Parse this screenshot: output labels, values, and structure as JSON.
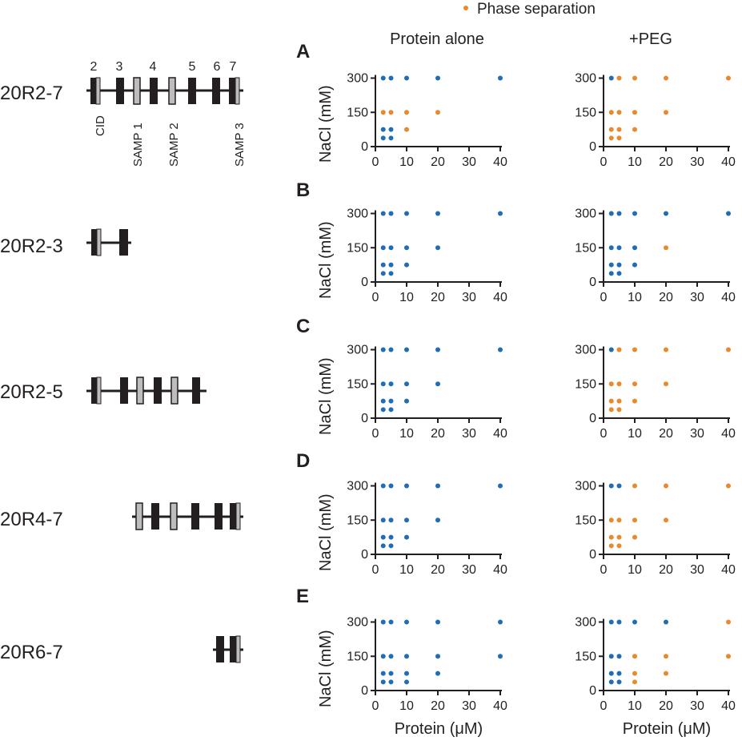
{
  "legend": {
    "label": "Phase separation",
    "color": "#e8892e"
  },
  "colors": {
    "no_phase": "#1f6db5",
    "phase": "#e8892e",
    "line": "#231f20",
    "light_box": "#bdbdbd"
  },
  "column_titles": [
    "Protein alone",
    "+PEG"
  ],
  "x_axis_label": "Protein (μM)",
  "y_axis_label": "NaCl (mM)",
  "construct_row1": {
    "name": "20R2-7",
    "numbers": [
      "2",
      "3",
      "4",
      "5",
      "6",
      "7"
    ],
    "sub_labels": [
      "CID",
      "SAMP 1",
      "SAMP 2",
      "SAMP 3"
    ]
  },
  "constructs": [
    "20R2-7",
    "20R2-3",
    "20R2-5",
    "20R4-7",
    "20R6-7"
  ],
  "chart_data": [
    {
      "panel": "A",
      "construct": "20R2-7",
      "condition": "Protein alone",
      "type": "scatter",
      "xlabel": "",
      "ylabel": "NaCl (mM)",
      "x_ticks": [
        0,
        10,
        20,
        30,
        40
      ],
      "y_ticks": [
        0,
        150,
        300
      ],
      "xlim": [
        0,
        40
      ],
      "ylim": [
        0,
        300
      ],
      "points": [
        {
          "x": 2.5,
          "y": 300,
          "phase": false
        },
        {
          "x": 5,
          "y": 300,
          "phase": false
        },
        {
          "x": 10,
          "y": 300,
          "phase": false
        },
        {
          "x": 20,
          "y": 300,
          "phase": false
        },
        {
          "x": 40,
          "y": 300,
          "phase": false
        },
        {
          "x": 2.5,
          "y": 150,
          "phase": true
        },
        {
          "x": 5,
          "y": 150,
          "phase": true
        },
        {
          "x": 10,
          "y": 150,
          "phase": true
        },
        {
          "x": 20,
          "y": 150,
          "phase": true
        },
        {
          "x": 2.5,
          "y": 75,
          "phase": false
        },
        {
          "x": 5,
          "y": 75,
          "phase": false
        },
        {
          "x": 10,
          "y": 75,
          "phase": true
        },
        {
          "x": 2.5,
          "y": 37.5,
          "phase": false
        },
        {
          "x": 5,
          "y": 37.5,
          "phase": false
        }
      ]
    },
    {
      "panel": "A",
      "construct": "20R2-7",
      "condition": "+PEG",
      "type": "scatter",
      "xlabel": "",
      "ylabel": "",
      "x_ticks": [
        0,
        10,
        20,
        30,
        40
      ],
      "y_ticks": [
        0,
        150,
        300
      ],
      "xlim": [
        0,
        40
      ],
      "ylim": [
        0,
        300
      ],
      "points": [
        {
          "x": 2.5,
          "y": 300,
          "phase": false
        },
        {
          "x": 5,
          "y": 300,
          "phase": true
        },
        {
          "x": 10,
          "y": 300,
          "phase": true
        },
        {
          "x": 20,
          "y": 300,
          "phase": true
        },
        {
          "x": 40,
          "y": 300,
          "phase": true
        },
        {
          "x": 2.5,
          "y": 150,
          "phase": true
        },
        {
          "x": 5,
          "y": 150,
          "phase": true
        },
        {
          "x": 10,
          "y": 150,
          "phase": true
        },
        {
          "x": 20,
          "y": 150,
          "phase": true
        },
        {
          "x": 2.5,
          "y": 75,
          "phase": true
        },
        {
          "x": 5,
          "y": 75,
          "phase": true
        },
        {
          "x": 10,
          "y": 75,
          "phase": true
        },
        {
          "x": 2.5,
          "y": 37.5,
          "phase": true
        },
        {
          "x": 5,
          "y": 37.5,
          "phase": true
        }
      ]
    },
    {
      "panel": "B",
      "construct": "20R2-3",
      "condition": "Protein alone",
      "type": "scatter",
      "xlabel": "",
      "ylabel": "NaCl (mM)",
      "x_ticks": [
        0,
        10,
        20,
        30,
        40
      ],
      "y_ticks": [
        0,
        150,
        300
      ],
      "xlim": [
        0,
        40
      ],
      "ylim": [
        0,
        300
      ],
      "points": [
        {
          "x": 2.5,
          "y": 300,
          "phase": false
        },
        {
          "x": 5,
          "y": 300,
          "phase": false
        },
        {
          "x": 10,
          "y": 300,
          "phase": false
        },
        {
          "x": 20,
          "y": 300,
          "phase": false
        },
        {
          "x": 40,
          "y": 300,
          "phase": false
        },
        {
          "x": 2.5,
          "y": 150,
          "phase": false
        },
        {
          "x": 5,
          "y": 150,
          "phase": false
        },
        {
          "x": 10,
          "y": 150,
          "phase": false
        },
        {
          "x": 20,
          "y": 150,
          "phase": false
        },
        {
          "x": 2.5,
          "y": 75,
          "phase": false
        },
        {
          "x": 5,
          "y": 75,
          "phase": false
        },
        {
          "x": 10,
          "y": 75,
          "phase": false
        },
        {
          "x": 2.5,
          "y": 37.5,
          "phase": false
        },
        {
          "x": 5,
          "y": 37.5,
          "phase": false
        }
      ]
    },
    {
      "panel": "B",
      "construct": "20R2-3",
      "condition": "+PEG",
      "type": "scatter",
      "xlabel": "",
      "ylabel": "",
      "x_ticks": [
        0,
        10,
        20,
        30,
        40
      ],
      "y_ticks": [
        0,
        150,
        300
      ],
      "xlim": [
        0,
        40
      ],
      "ylim": [
        0,
        300
      ],
      "points": [
        {
          "x": 2.5,
          "y": 300,
          "phase": false
        },
        {
          "x": 5,
          "y": 300,
          "phase": false
        },
        {
          "x": 10,
          "y": 300,
          "phase": false
        },
        {
          "x": 20,
          "y": 300,
          "phase": false
        },
        {
          "x": 40,
          "y": 300,
          "phase": false
        },
        {
          "x": 2.5,
          "y": 150,
          "phase": false
        },
        {
          "x": 5,
          "y": 150,
          "phase": false
        },
        {
          "x": 10,
          "y": 150,
          "phase": false
        },
        {
          "x": 20,
          "y": 150,
          "phase": true
        },
        {
          "x": 2.5,
          "y": 75,
          "phase": false
        },
        {
          "x": 5,
          "y": 75,
          "phase": false
        },
        {
          "x": 10,
          "y": 75,
          "phase": false
        },
        {
          "x": 2.5,
          "y": 37.5,
          "phase": false
        },
        {
          "x": 5,
          "y": 37.5,
          "phase": false
        }
      ]
    },
    {
      "panel": "C",
      "construct": "20R2-5",
      "condition": "Protein alone",
      "type": "scatter",
      "xlabel": "",
      "ylabel": "NaCl (mM)",
      "x_ticks": [
        0,
        10,
        20,
        30,
        40
      ],
      "y_ticks": [
        0,
        150,
        300
      ],
      "xlim": [
        0,
        40
      ],
      "ylim": [
        0,
        300
      ],
      "points": [
        {
          "x": 2.5,
          "y": 300,
          "phase": false
        },
        {
          "x": 5,
          "y": 300,
          "phase": false
        },
        {
          "x": 10,
          "y": 300,
          "phase": false
        },
        {
          "x": 20,
          "y": 300,
          "phase": false
        },
        {
          "x": 40,
          "y": 300,
          "phase": false
        },
        {
          "x": 2.5,
          "y": 150,
          "phase": false
        },
        {
          "x": 5,
          "y": 150,
          "phase": false
        },
        {
          "x": 10,
          "y": 150,
          "phase": false
        },
        {
          "x": 20,
          "y": 150,
          "phase": false
        },
        {
          "x": 2.5,
          "y": 75,
          "phase": false
        },
        {
          "x": 5,
          "y": 75,
          "phase": false
        },
        {
          "x": 10,
          "y": 75,
          "phase": false
        },
        {
          "x": 2.5,
          "y": 37.5,
          "phase": false
        },
        {
          "x": 5,
          "y": 37.5,
          "phase": false
        }
      ]
    },
    {
      "panel": "C",
      "construct": "20R2-5",
      "condition": "+PEG",
      "type": "scatter",
      "xlabel": "",
      "ylabel": "",
      "x_ticks": [
        0,
        10,
        20,
        30,
        40
      ],
      "y_ticks": [
        0,
        150,
        300
      ],
      "xlim": [
        0,
        40
      ],
      "ylim": [
        0,
        300
      ],
      "points": [
        {
          "x": 2.5,
          "y": 300,
          "phase": false
        },
        {
          "x": 5,
          "y": 300,
          "phase": true
        },
        {
          "x": 10,
          "y": 300,
          "phase": true
        },
        {
          "x": 20,
          "y": 300,
          "phase": true
        },
        {
          "x": 40,
          "y": 300,
          "phase": true
        },
        {
          "x": 2.5,
          "y": 150,
          "phase": true
        },
        {
          "x": 5,
          "y": 150,
          "phase": true
        },
        {
          "x": 10,
          "y": 150,
          "phase": true
        },
        {
          "x": 20,
          "y": 150,
          "phase": true
        },
        {
          "x": 2.5,
          "y": 75,
          "phase": true
        },
        {
          "x": 5,
          "y": 75,
          "phase": true
        },
        {
          "x": 10,
          "y": 75,
          "phase": true
        },
        {
          "x": 2.5,
          "y": 37.5,
          "phase": true
        },
        {
          "x": 5,
          "y": 37.5,
          "phase": true
        }
      ]
    },
    {
      "panel": "D",
      "construct": "20R4-7",
      "condition": "Protein alone",
      "type": "scatter",
      "xlabel": "",
      "ylabel": "NaCl (mM)",
      "x_ticks": [
        0,
        10,
        20,
        30,
        40
      ],
      "y_ticks": [
        0,
        150,
        300
      ],
      "xlim": [
        0,
        40
      ],
      "ylim": [
        0,
        300
      ],
      "points": [
        {
          "x": 2.5,
          "y": 300,
          "phase": false
        },
        {
          "x": 5,
          "y": 300,
          "phase": false
        },
        {
          "x": 10,
          "y": 300,
          "phase": false
        },
        {
          "x": 20,
          "y": 300,
          "phase": false
        },
        {
          "x": 40,
          "y": 300,
          "phase": false
        },
        {
          "x": 2.5,
          "y": 150,
          "phase": false
        },
        {
          "x": 5,
          "y": 150,
          "phase": false
        },
        {
          "x": 10,
          "y": 150,
          "phase": false
        },
        {
          "x": 20,
          "y": 150,
          "phase": false
        },
        {
          "x": 2.5,
          "y": 75,
          "phase": false
        },
        {
          "x": 5,
          "y": 75,
          "phase": false
        },
        {
          "x": 10,
          "y": 75,
          "phase": false
        },
        {
          "x": 2.5,
          "y": 37.5,
          "phase": false
        },
        {
          "x": 5,
          "y": 37.5,
          "phase": false
        }
      ]
    },
    {
      "panel": "D",
      "construct": "20R4-7",
      "condition": "+PEG",
      "type": "scatter",
      "xlabel": "",
      "ylabel": "",
      "x_ticks": [
        0,
        10,
        20,
        30,
        40
      ],
      "y_ticks": [
        0,
        150,
        300
      ],
      "xlim": [
        0,
        40
      ],
      "ylim": [
        0,
        300
      ],
      "points": [
        {
          "x": 2.5,
          "y": 300,
          "phase": false
        },
        {
          "x": 5,
          "y": 300,
          "phase": false
        },
        {
          "x": 10,
          "y": 300,
          "phase": true
        },
        {
          "x": 20,
          "y": 300,
          "phase": true
        },
        {
          "x": 40,
          "y": 300,
          "phase": true
        },
        {
          "x": 2.5,
          "y": 150,
          "phase": true
        },
        {
          "x": 5,
          "y": 150,
          "phase": true
        },
        {
          "x": 10,
          "y": 150,
          "phase": true
        },
        {
          "x": 20,
          "y": 150,
          "phase": true
        },
        {
          "x": 2.5,
          "y": 75,
          "phase": true
        },
        {
          "x": 5,
          "y": 75,
          "phase": true
        },
        {
          "x": 10,
          "y": 75,
          "phase": true
        },
        {
          "x": 2.5,
          "y": 37.5,
          "phase": true
        },
        {
          "x": 5,
          "y": 37.5,
          "phase": true
        }
      ]
    },
    {
      "panel": "E",
      "construct": "20R6-7",
      "condition": "Protein alone",
      "type": "scatter",
      "xlabel": "Protein (μM)",
      "ylabel": "NaCl (mM)",
      "x_ticks": [
        0,
        10,
        20,
        30,
        40
      ],
      "y_ticks": [
        0,
        150,
        300
      ],
      "xlim": [
        0,
        40
      ],
      "ylim": [
        0,
        300
      ],
      "points": [
        {
          "x": 2.5,
          "y": 300,
          "phase": false
        },
        {
          "x": 5,
          "y": 300,
          "phase": false
        },
        {
          "x": 10,
          "y": 300,
          "phase": false
        },
        {
          "x": 20,
          "y": 300,
          "phase": false
        },
        {
          "x": 40,
          "y": 300,
          "phase": false
        },
        {
          "x": 2.5,
          "y": 150,
          "phase": false
        },
        {
          "x": 5,
          "y": 150,
          "phase": false
        },
        {
          "x": 10,
          "y": 150,
          "phase": false
        },
        {
          "x": 20,
          "y": 150,
          "phase": false
        },
        {
          "x": 40,
          "y": 150,
          "phase": false
        },
        {
          "x": 2.5,
          "y": 75,
          "phase": false
        },
        {
          "x": 5,
          "y": 75,
          "phase": false
        },
        {
          "x": 10,
          "y": 75,
          "phase": false
        },
        {
          "x": 20,
          "y": 75,
          "phase": false
        },
        {
          "x": 2.5,
          "y": 37.5,
          "phase": false
        },
        {
          "x": 5,
          "y": 37.5,
          "phase": false
        },
        {
          "x": 10,
          "y": 37.5,
          "phase": false
        }
      ]
    },
    {
      "panel": "E",
      "construct": "20R6-7",
      "condition": "+PEG",
      "type": "scatter",
      "xlabel": "Protein (μM)",
      "ylabel": "",
      "x_ticks": [
        0,
        10,
        20,
        30,
        40
      ],
      "y_ticks": [
        0,
        150,
        300
      ],
      "xlim": [
        0,
        40
      ],
      "ylim": [
        0,
        300
      ],
      "points": [
        {
          "x": 2.5,
          "y": 300,
          "phase": false
        },
        {
          "x": 5,
          "y": 300,
          "phase": false
        },
        {
          "x": 10,
          "y": 300,
          "phase": false
        },
        {
          "x": 20,
          "y": 300,
          "phase": false
        },
        {
          "x": 40,
          "y": 300,
          "phase": true
        },
        {
          "x": 2.5,
          "y": 150,
          "phase": false
        },
        {
          "x": 5,
          "y": 150,
          "phase": false
        },
        {
          "x": 10,
          "y": 150,
          "phase": true
        },
        {
          "x": 20,
          "y": 150,
          "phase": true
        },
        {
          "x": 40,
          "y": 150,
          "phase": true
        },
        {
          "x": 2.5,
          "y": 75,
          "phase": false
        },
        {
          "x": 5,
          "y": 75,
          "phase": false
        },
        {
          "x": 10,
          "y": 75,
          "phase": true
        },
        {
          "x": 20,
          "y": 75,
          "phase": true
        },
        {
          "x": 2.5,
          "y": 37.5,
          "phase": false
        },
        {
          "x": 5,
          "y": 37.5,
          "phase": false
        },
        {
          "x": 10,
          "y": 37.5,
          "phase": true
        }
      ]
    }
  ]
}
